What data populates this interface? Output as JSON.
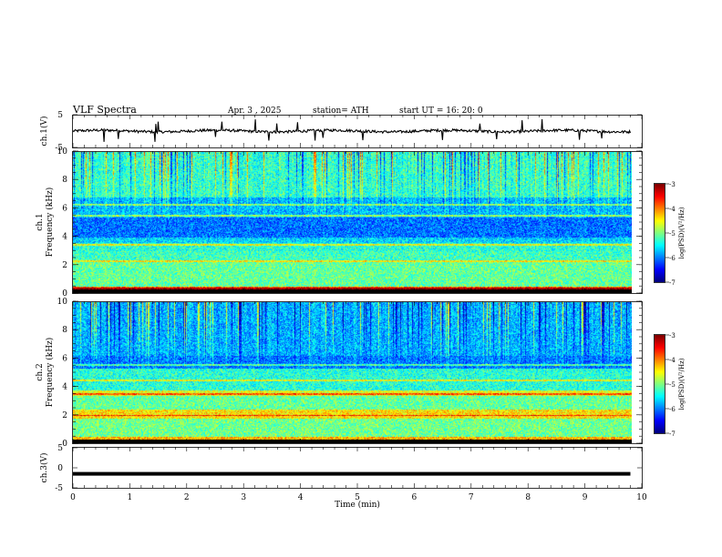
{
  "header": {
    "title": "VLF  Spectra",
    "date": "Apr. 3  , 2025",
    "station": "station= ATH",
    "start": "start  UT  =    16: 20: 0"
  },
  "chart_data": [
    {
      "type": "line",
      "name": "ch1-waveform",
      "ylabel": "ch.1(V)",
      "ylim": [
        -5,
        5
      ],
      "y_ticks": [
        "5",
        "-5"
      ],
      "xlim": [
        0,
        10
      ],
      "x_data_extent": [
        0,
        9.8
      ],
      "baseline": 0,
      "noise_amplitude": 0.8,
      "spikes": [
        0.55,
        0.8,
        1.45,
        1.5,
        2.5,
        2.62,
        3.2,
        3.45,
        3.58,
        3.95,
        4.25,
        4.4,
        5.1,
        6.5,
        7.15,
        7.45,
        7.9,
        8.25,
        8.9,
        9.3
      ]
    },
    {
      "type": "heatmap",
      "name": "ch1-spectrogram",
      "ylabel": "ch.1\nFrequency  (kHz)",
      "ylim": [
        0,
        10
      ],
      "y_ticks": [
        "0",
        "2",
        "4",
        "6",
        "8",
        "10"
      ],
      "xlim": [
        0,
        10
      ],
      "x_data_extent": [
        0,
        9.8
      ],
      "colorbar": {
        "label": "log(PSD)(V²/Hz)",
        "range": [
          -7,
          -3
        ],
        "ticks": [
          "-3",
          "-4",
          "-5",
          "-6",
          "-7"
        ]
      },
      "bands": [
        {
          "f": [
            0,
            0.5
          ],
          "v": -3.9
        },
        {
          "f": [
            0.5,
            2.2
          ],
          "v": -5.1
        },
        {
          "f": [
            2.2,
            3.0
          ],
          "v": -5.25
        },
        {
          "f": [
            3.0,
            3.6
          ],
          "v": -5.35
        },
        {
          "f": [
            3.6,
            4.0
          ],
          "v": -5.65
        },
        {
          "f": [
            4.0,
            5.4
          ],
          "v": -6.05
        },
        {
          "f": [
            5.4,
            6.8
          ],
          "v": -5.75
        },
        {
          "f": [
            6.8,
            10
          ],
          "v": -5.3
        }
      ],
      "lines_khz": [
        0.35,
        2.3,
        3.45,
        5.5,
        6.3
      ]
    },
    {
      "type": "heatmap",
      "name": "ch2-spectrogram",
      "ylabel": "ch.2\nFrequency  (kHz)",
      "ylim": [
        0,
        10
      ],
      "y_ticks": [
        "0",
        "2",
        "4",
        "6",
        "8",
        "10"
      ],
      "xlim": [
        0,
        10
      ],
      "x_data_extent": [
        0,
        9.8
      ],
      "colorbar": {
        "label": "log(PSD)(V²/Hz)",
        "range": [
          -7,
          -3
        ],
        "ticks": [
          "-3",
          "-4",
          "-5",
          "-6",
          "-7"
        ]
      },
      "bands": [
        {
          "f": [
            0,
            0.5
          ],
          "v": -4.2
        },
        {
          "f": [
            0.5,
            1.8
          ],
          "v": -5.05
        },
        {
          "f": [
            1.8,
            2.4
          ],
          "v": -4.4
        },
        {
          "f": [
            2.4,
            3.4
          ],
          "v": -5.1
        },
        {
          "f": [
            3.4,
            3.8
          ],
          "v": -4.6
        },
        {
          "f": [
            3.8,
            5.3
          ],
          "v": -5.35
        },
        {
          "f": [
            5.3,
            6.2
          ],
          "v": -6.0
        },
        {
          "f": [
            6.2,
            10
          ],
          "v": -5.8
        }
      ],
      "lines_khz": [
        2.0,
        3.5,
        4.5,
        5.6
      ]
    },
    {
      "type": "line",
      "name": "ch3-waveform",
      "ylabel": "ch.3(V)",
      "ylim": [
        -5,
        5
      ],
      "y_ticks": [
        "5",
        "0",
        "-5"
      ],
      "xlim": [
        0,
        10
      ],
      "x_data_extent": [
        0,
        9.8
      ],
      "baseline": -1.5,
      "noise_amplitude": 0.2,
      "xlabel": "Time  (min)",
      "x_ticks": [
        "0",
        "1",
        "2",
        "3",
        "4",
        "5",
        "6",
        "7",
        "8",
        "9",
        "10"
      ]
    }
  ]
}
